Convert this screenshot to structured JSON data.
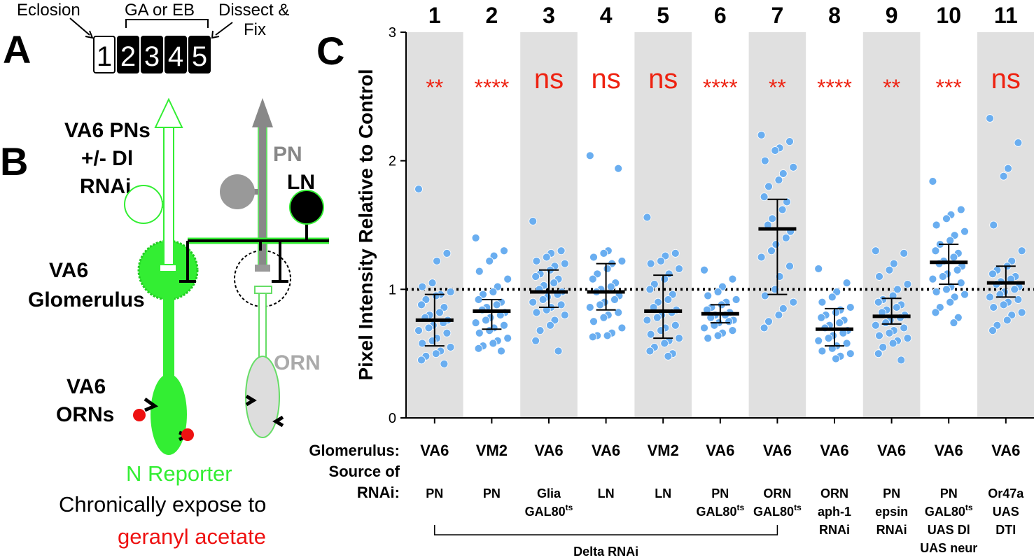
{
  "panels": {
    "a": "A",
    "b": "B",
    "c": "C"
  },
  "panel_a": {
    "eclosion": "Eclosion",
    "treatment": "GA or EB",
    "dissect_line1": "Dissect &",
    "dissect_line2": "Fix",
    "days": [
      "1",
      "2",
      "3",
      "4",
      "5"
    ]
  },
  "panel_b": {
    "pn_group_line1": "VA6 PNs",
    "pn_group_line2": "+/- Dl",
    "pn_group_line3": "RNAi",
    "pn": "PN",
    "ln": "LN",
    "glom_line1": "VA6",
    "glom_line2": "Glomerulus",
    "orn": "ORN",
    "orn_group_line1": "VA6",
    "orn_group_line2": "ORNs",
    "reporter": "N Reporter",
    "expose": "Chronically expose to",
    "odor": "geranyl acetate",
    "colors": {
      "green": "#33ee33",
      "gray": "#888888",
      "red": "#ee1111"
    }
  },
  "chart_data": {
    "type": "scatter",
    "ylabel": "Pixel Intensity Relative to Control",
    "ylim": [
      0,
      3
    ],
    "yticks": [
      "0",
      "1",
      "2",
      "3"
    ],
    "reference_line": 1,
    "categories": [
      "1",
      "2",
      "3",
      "4",
      "5",
      "6",
      "7",
      "8",
      "9",
      "10",
      "11"
    ],
    "significance": [
      "**",
      "****",
      "ns",
      "ns",
      "ns",
      "****",
      "**",
      "****",
      "**",
      "***",
      "ns"
    ],
    "means": [
      0.76,
      0.83,
      0.98,
      0.98,
      0.83,
      0.81,
      1.47,
      0.69,
      0.79,
      1.21,
      1.05
    ],
    "err_low": [
      0.56,
      0.69,
      0.86,
      0.84,
      0.62,
      0.74,
      0.96,
      0.56,
      0.73,
      1.04,
      0.94
    ],
    "err_high": [
      0.96,
      0.92,
      1.15,
      1.2,
      1.11,
      0.88,
      1.7,
      0.85,
      0.93,
      1.35,
      1.18
    ],
    "points": [
      [
        1.78,
        1.28,
        1.22,
        1.05,
        1.02,
        0.98,
        0.96,
        0.95,
        0.92,
        0.88,
        0.86,
        0.82,
        0.8,
        0.78,
        0.76,
        0.74,
        0.72,
        0.7,
        0.68,
        0.66,
        0.62,
        0.6,
        0.58,
        0.55,
        0.52,
        0.5,
        0.48,
        0.45,
        0.42
      ],
      [
        1.4,
        1.3,
        1.26,
        1.22,
        1.14,
        1.08,
        1.02,
        0.98,
        0.96,
        0.92,
        0.9,
        0.88,
        0.86,
        0.84,
        0.82,
        0.8,
        0.78,
        0.76,
        0.74,
        0.72,
        0.7,
        0.68,
        0.66,
        0.62,
        0.6,
        0.58,
        0.56,
        0.54,
        0.52
      ],
      [
        1.53,
        1.3,
        1.28,
        1.25,
        1.22,
        1.2,
        1.18,
        1.15,
        1.12,
        1.1,
        1.08,
        1.05,
        1.03,
        1.0,
        0.98,
        0.96,
        0.94,
        0.92,
        0.9,
        0.88,
        0.86,
        0.84,
        0.82,
        0.8,
        0.76,
        0.72,
        0.68,
        0.6,
        0.52
      ],
      [
        2.04,
        1.94,
        1.3,
        1.28,
        1.25,
        1.22,
        1.2,
        1.16,
        1.12,
        1.08,
        1.05,
        1.02,
        1.0,
        0.98,
        0.95,
        0.92,
        0.9,
        0.88,
        0.86,
        0.82,
        0.8,
        0.78,
        0.75,
        0.7,
        0.66,
        0.64,
        0.64,
        0.63
      ],
      [
        1.56,
        1.28,
        1.26,
        1.22,
        1.2,
        1.16,
        1.12,
        1.08,
        1.04,
        1.0,
        0.96,
        0.92,
        0.9,
        0.86,
        0.84,
        0.82,
        0.8,
        0.78,
        0.76,
        0.72,
        0.7,
        0.68,
        0.65,
        0.62,
        0.6,
        0.58,
        0.55,
        0.52,
        0.5,
        0.48
      ],
      [
        1.15,
        1.08,
        1.02,
        0.98,
        0.95,
        0.92,
        0.9,
        0.88,
        0.86,
        0.84,
        0.82,
        0.8,
        0.8,
        0.78,
        0.76,
        0.75,
        0.74,
        0.72,
        0.7,
        0.68,
        0.66,
        0.64,
        0.62
      ],
      [
        2.2,
        2.15,
        2.1,
        2.08,
        2.0,
        1.95,
        1.9,
        1.85,
        1.8,
        1.72,
        1.68,
        1.62,
        1.55,
        1.5,
        1.45,
        1.4,
        1.35,
        1.3,
        1.25,
        1.18,
        1.1,
        1.0,
        0.95,
        0.9,
        0.85,
        0.8,
        0.75,
        0.7
      ],
      [
        1.16,
        1.05,
        0.98,
        0.94,
        0.9,
        0.86,
        0.84,
        0.82,
        0.8,
        0.78,
        0.76,
        0.74,
        0.72,
        0.7,
        0.68,
        0.66,
        0.64,
        0.62,
        0.6,
        0.58,
        0.56,
        0.54,
        0.52,
        0.5,
        0.48,
        0.46
      ],
      [
        1.3,
        1.28,
        1.2,
        1.15,
        1.1,
        1.04,
        1.0,
        0.95,
        0.92,
        0.9,
        0.88,
        0.86,
        0.84,
        0.82,
        0.8,
        0.78,
        0.76,
        0.74,
        0.72,
        0.7,
        0.68,
        0.66,
        0.64,
        0.62,
        0.6,
        0.58,
        0.55,
        0.5,
        0.45
      ],
      [
        1.84,
        1.62,
        1.58,
        1.55,
        1.5,
        1.45,
        1.42,
        1.38,
        1.35,
        1.3,
        1.28,
        1.25,
        1.22,
        1.2,
        1.18,
        1.15,
        1.12,
        1.1,
        1.08,
        1.05,
        1.02,
        1.0,
        0.98,
        0.96,
        0.94,
        0.9,
        0.86,
        0.82,
        0.78,
        0.74
      ],
      [
        2.33,
        2.14,
        1.94,
        1.88,
        1.5,
        1.3,
        1.22,
        1.18,
        1.15,
        1.12,
        1.1,
        1.08,
        1.06,
        1.04,
        1.02,
        1.0,
        0.98,
        0.96,
        0.94,
        0.92,
        0.9,
        0.88,
        0.86,
        0.82,
        0.8,
        0.76,
        0.72,
        0.68
      ]
    ],
    "glomerulus_label": "Glomerulus:",
    "glomerulus": [
      "VA6",
      "VM2",
      "VA6",
      "VA6",
      "VM2",
      "VA6",
      "VA6",
      "VA6",
      "VA6",
      "VA6",
      "VA6"
    ],
    "source_label_line1": "Source of",
    "source_label_line2": "RNAi:",
    "source_lines": [
      [
        "PN"
      ],
      [
        "PN"
      ],
      [
        "Glia",
        "GAL80ts"
      ],
      [
        "LN"
      ],
      [
        "LN"
      ],
      [
        "PN",
        "GAL80ts"
      ],
      [
        "ORN",
        "GAL80ts"
      ],
      [
        "ORN",
        "aph-1",
        "RNAi"
      ],
      [
        "PN",
        "epsin",
        "RNAi"
      ],
      [
        "PN",
        "GAL80ts",
        "UAS Dl",
        "UAS neur"
      ],
      [
        "Or47a",
        "UAS",
        "DTI"
      ]
    ],
    "bracket_label": "Delta RNAi",
    "colors": {
      "point": "#6aaef0",
      "shade": "#e0e0e0",
      "sig": "#ee2211"
    }
  }
}
